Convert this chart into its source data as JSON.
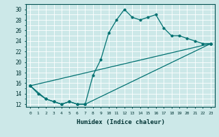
{
  "xlabel": "Humidex (Indice chaleur)",
  "ylabel": "",
  "bg_color": "#cce8e8",
  "line_color": "#007070",
  "xlim": [
    -0.5,
    23.5
  ],
  "ylim": [
    11.5,
    31
  ],
  "yticks": [
    12,
    14,
    16,
    18,
    20,
    22,
    24,
    26,
    28,
    30
  ],
  "xticks": [
    0,
    1,
    2,
    3,
    4,
    5,
    6,
    7,
    8,
    9,
    10,
    11,
    12,
    13,
    14,
    15,
    16,
    17,
    18,
    19,
    20,
    21,
    22,
    23
  ],
  "series": [
    {
      "x": [
        0,
        1,
        2,
        3,
        4,
        5,
        6,
        7,
        8,
        9,
        10,
        11,
        12,
        13,
        14,
        15,
        16,
        17,
        18,
        19,
        20,
        21,
        22,
        23
      ],
      "y": [
        15.5,
        14,
        13,
        12.5,
        12,
        12.5,
        12,
        12,
        17.5,
        20.5,
        25.5,
        28,
        30,
        28.5,
        28,
        28.5,
        29,
        26.5,
        25,
        25,
        24.5,
        24,
        23.5,
        23.5
      ]
    },
    {
      "x": [
        0,
        2,
        3,
        4,
        5,
        6,
        7,
        23
      ],
      "y": [
        15.5,
        13,
        12.5,
        12,
        12.5,
        12,
        12,
        23.5
      ]
    },
    {
      "x": [
        0,
        23
      ],
      "y": [
        15.5,
        23.5
      ]
    }
  ]
}
